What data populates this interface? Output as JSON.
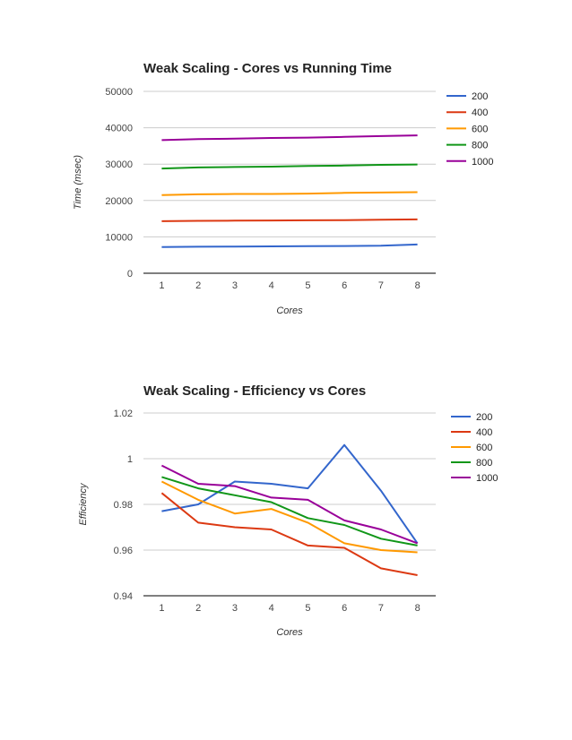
{
  "chart_data": [
    {
      "type": "line",
      "title": "Weak Scaling - Cores vs Running Time",
      "xlabel": "Cores",
      "ylabel": "Time (msec)",
      "x": [
        1,
        2,
        3,
        4,
        5,
        6,
        7,
        8
      ],
      "x_tick_labels": [
        "1",
        "2",
        "3",
        "4",
        "5",
        "6",
        "7",
        "8"
      ],
      "ylim": [
        0,
        50000
      ],
      "y_ticks": [
        0,
        10000,
        20000,
        30000,
        40000,
        50000
      ],
      "y_tick_labels": [
        "0",
        "10000",
        "20000",
        "30000",
        "40000",
        "50000"
      ],
      "grid": true,
      "legend_position": "right",
      "series": [
        {
          "name": "200",
          "color": "#3366cc",
          "values": [
            7200,
            7300,
            7350,
            7400,
            7450,
            7500,
            7550,
            7900
          ]
        },
        {
          "name": "400",
          "color": "#dc3912",
          "values": [
            14300,
            14400,
            14450,
            14500,
            14550,
            14600,
            14700,
            14800
          ]
        },
        {
          "name": "600",
          "color": "#ff9900",
          "values": [
            21500,
            21700,
            21800,
            21800,
            21900,
            22100,
            22200,
            22300
          ]
        },
        {
          "name": "800",
          "color": "#109618",
          "values": [
            28800,
            29100,
            29200,
            29300,
            29500,
            29600,
            29800,
            29900
          ]
        },
        {
          "name": "1000",
          "color": "#990099",
          "values": [
            36600,
            36900,
            37000,
            37200,
            37300,
            37500,
            37700,
            37900
          ]
        }
      ]
    },
    {
      "type": "line",
      "title": "Weak Scaling - Efficiency vs Cores",
      "xlabel": "Cores",
      "ylabel": "Efficiency",
      "x": [
        1,
        2,
        3,
        4,
        5,
        6,
        7,
        8
      ],
      "x_tick_labels": [
        "1",
        "2",
        "3",
        "4",
        "5",
        "6",
        "7",
        "8"
      ],
      "ylim": [
        0.94,
        1.02
      ],
      "y_ticks": [
        0.94,
        0.96,
        0.98,
        1.0,
        1.02
      ],
      "y_tick_labels": [
        "0.94",
        "0.96",
        "0.98",
        "1",
        "1.02"
      ],
      "grid": true,
      "legend_position": "right",
      "series": [
        {
          "name": "200",
          "color": "#3366cc",
          "values": [
            0.977,
            0.98,
            0.99,
            0.989,
            0.987,
            1.006,
            0.986,
            0.963
          ]
        },
        {
          "name": "400",
          "color": "#dc3912",
          "values": [
            0.985,
            0.972,
            0.97,
            0.969,
            0.962,
            0.961,
            0.952,
            0.949
          ]
        },
        {
          "name": "600",
          "color": "#ff9900",
          "values": [
            0.99,
            0.982,
            0.976,
            0.978,
            0.972,
            0.963,
            0.96,
            0.959
          ]
        },
        {
          "name": "800",
          "color": "#109618",
          "values": [
            0.992,
            0.987,
            0.984,
            0.981,
            0.974,
            0.971,
            0.965,
            0.962
          ]
        },
        {
          "name": "1000",
          "color": "#990099",
          "values": [
            0.997,
            0.989,
            0.988,
            0.983,
            0.982,
            0.973,
            0.969,
            0.963
          ]
        }
      ]
    }
  ]
}
